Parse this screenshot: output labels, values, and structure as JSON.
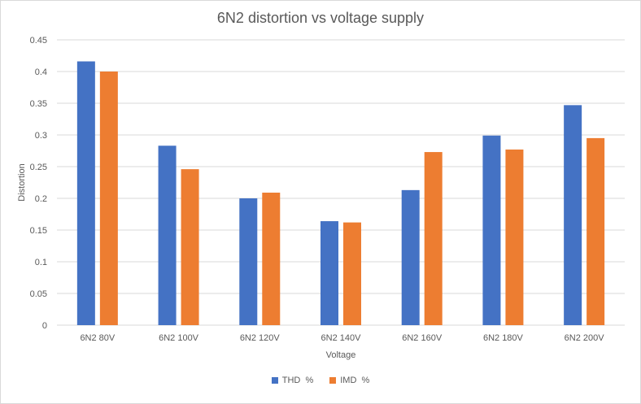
{
  "chart_data": {
    "type": "bar",
    "title": "6N2 distortion vs voltage supply",
    "xlabel": "Voltage",
    "ylabel": "Distortion",
    "ylim": [
      0,
      0.45
    ],
    "yticks": [
      "0",
      "0.05",
      "0.1",
      "0.15",
      "0.2",
      "0.25",
      "0.3",
      "0.35",
      "0.4",
      "0.45"
    ],
    "grid": true,
    "legend_position": "bottom",
    "categories": [
      "6N2  80V",
      "6N2 100V",
      "6N2 120V",
      "6N2 140V",
      "6N2 160V",
      "6N2 180V",
      "6N2 200V"
    ],
    "series": [
      {
        "name": "THD  %",
        "color": "#4472c4",
        "values": [
          0.416,
          0.283,
          0.2,
          0.164,
          0.213,
          0.299,
          0.347
        ]
      },
      {
        "name": "IMD  %",
        "color": "#ed7d31",
        "values": [
          0.4,
          0.246,
          0.209,
          0.162,
          0.273,
          0.277,
          0.295
        ]
      }
    ]
  }
}
